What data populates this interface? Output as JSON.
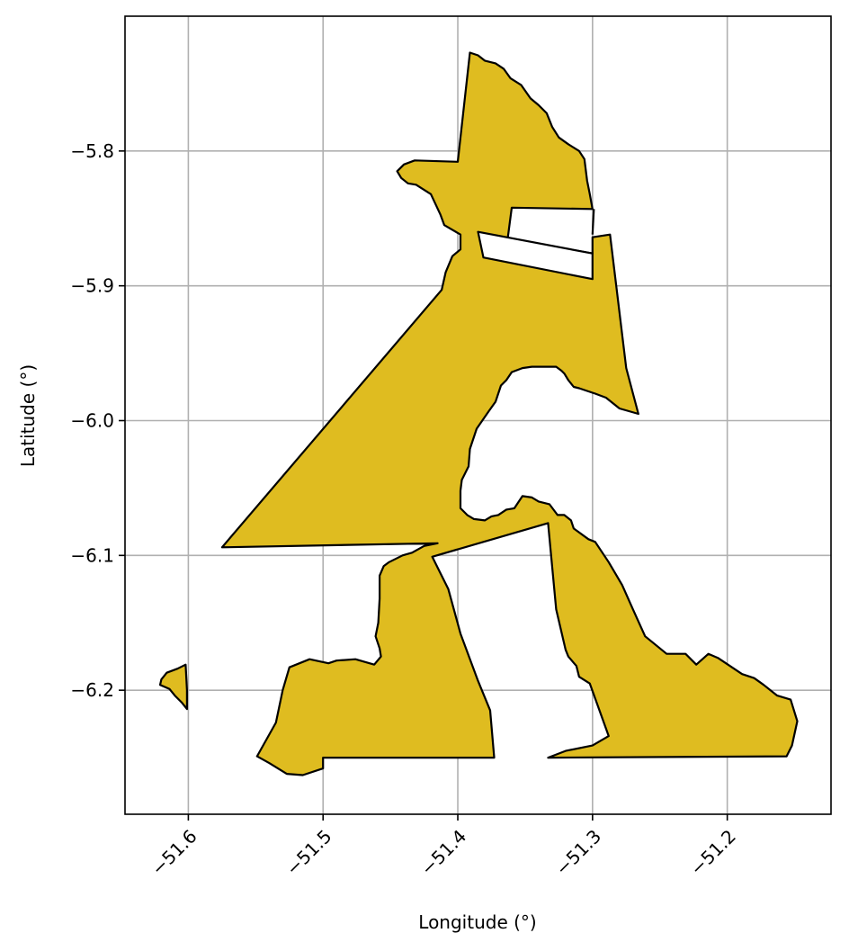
{
  "chart_data": {
    "type": "map",
    "xlabel": "Longitude (°)",
    "ylabel": "Latitude (°)",
    "xlim": [
      -51.647,
      -51.123
    ],
    "ylim": [
      -6.292,
      -5.7
    ],
    "x_ticks": [
      {
        "value": -51.6,
        "label": "−51.6"
      },
      {
        "value": -51.5,
        "label": "−51.5"
      },
      {
        "value": -51.4,
        "label": "−51.4"
      },
      {
        "value": -51.3,
        "label": "−51.3"
      },
      {
        "value": -51.2,
        "label": "−51.2"
      }
    ],
    "y_ticks": [
      {
        "value": -5.8,
        "label": "−5.8"
      },
      {
        "value": -5.9,
        "label": "−5.9"
      },
      {
        "value": -6.0,
        "label": "−6.0"
      },
      {
        "value": -6.1,
        "label": "−6.1"
      },
      {
        "value": -6.2,
        "label": "−6.2"
      }
    ],
    "grid": true,
    "fill_color": "#dfbc20",
    "edge_color": "#000000",
    "polygons": [
      {
        "name": "main-region",
        "outer": [
          [
            -51.391,
            -5.727
          ],
          [
            -51.385,
            -5.729
          ],
          [
            -51.38,
            -5.733
          ],
          [
            -51.372,
            -5.735
          ],
          [
            -51.366,
            -5.739
          ],
          [
            -51.361,
            -5.746
          ],
          [
            -51.353,
            -5.751
          ],
          [
            -51.346,
            -5.761
          ],
          [
            -51.34,
            -5.766
          ],
          [
            -51.334,
            -5.772
          ],
          [
            -51.33,
            -5.782
          ],
          [
            -51.325,
            -5.79
          ],
          [
            -51.318,
            -5.795
          ],
          [
            -51.31,
            -5.8
          ],
          [
            -51.306,
            -5.806
          ],
          [
            -51.304,
            -5.822
          ],
          [
            -51.302,
            -5.832
          ],
          [
            -51.3,
            -5.843
          ],
          [
            -51.36,
            -5.842
          ],
          [
            -51.363,
            -5.865
          ],
          [
            -51.3,
            -5.876
          ],
          [
            -51.3,
            -5.864
          ],
          [
            -51.287,
            -5.862
          ],
          [
            -51.275,
            -5.961
          ],
          [
            -51.266,
            -5.995
          ],
          [
            -51.28,
            -5.991
          ],
          [
            -51.29,
            -5.983
          ],
          [
            -51.298,
            -5.98
          ],
          [
            -51.304,
            -5.978
          ],
          [
            -51.31,
            -5.976
          ],
          [
            -51.314,
            -5.975
          ],
          [
            -51.318,
            -5.97
          ],
          [
            -51.321,
            -5.965
          ],
          [
            -51.323,
            -5.963
          ],
          [
            -51.327,
            -5.96
          ],
          [
            -51.335,
            -5.96
          ],
          [
            -51.345,
            -5.96
          ],
          [
            -51.352,
            -5.961
          ],
          [
            -51.36,
            -5.964
          ],
          [
            -51.364,
            -5.97
          ],
          [
            -51.368,
            -5.974
          ],
          [
            -51.372,
            -5.986
          ],
          [
            -51.377,
            -5.993
          ],
          [
            -51.386,
            -6.006
          ],
          [
            -51.391,
            -6.021
          ],
          [
            -51.392,
            -6.034
          ],
          [
            -51.397,
            -6.044
          ],
          [
            -51.398,
            -6.052
          ],
          [
            -51.398,
            -6.065
          ],
          [
            -51.393,
            -6.07
          ],
          [
            -51.388,
            -6.073
          ],
          [
            -51.38,
            -6.074
          ],
          [
            -51.375,
            -6.071
          ],
          [
            -51.37,
            -6.07
          ],
          [
            -51.364,
            -6.066
          ],
          [
            -51.358,
            -6.065
          ],
          [
            -51.352,
            -6.056
          ],
          [
            -51.345,
            -6.057
          ],
          [
            -51.34,
            -6.06
          ],
          [
            -51.332,
            -6.062
          ],
          [
            -51.326,
            -6.07
          ],
          [
            -51.321,
            -6.07
          ],
          [
            -51.316,
            -6.074
          ],
          [
            -51.314,
            -6.08
          ],
          [
            -51.303,
            -6.088
          ],
          [
            -51.298,
            -6.09
          ],
          [
            -51.288,
            -6.105
          ],
          [
            -51.278,
            -6.122
          ],
          [
            -51.27,
            -6.14
          ],
          [
            -51.261,
            -6.16
          ],
          [
            -51.245,
            -6.173
          ],
          [
            -51.231,
            -6.173
          ],
          [
            -51.223,
            -6.181
          ],
          [
            -51.214,
            -6.173
          ],
          [
            -51.207,
            -6.176
          ],
          [
            -51.189,
            -6.188
          ],
          [
            -51.18,
            -6.191
          ],
          [
            -51.173,
            -6.196
          ],
          [
            -51.163,
            -6.204
          ],
          [
            -51.153,
            -6.207
          ],
          [
            -51.148,
            -6.223
          ],
          [
            -51.152,
            -6.241
          ],
          [
            -51.156,
            -6.249
          ],
          [
            -51.333,
            -6.25
          ],
          [
            -51.32,
            -6.245
          ],
          [
            -51.3,
            -6.241
          ],
          [
            -51.288,
            -6.234
          ],
          [
            -51.302,
            -6.195
          ],
          [
            -51.31,
            -6.19
          ],
          [
            -51.312,
            -6.182
          ],
          [
            -51.318,
            -6.175
          ],
          [
            -51.32,
            -6.17
          ],
          [
            -51.327,
            -6.14
          ],
          [
            -51.333,
            -6.076
          ],
          [
            -51.419,
            -6.101
          ],
          [
            -51.407,
            -6.125
          ],
          [
            -51.398,
            -6.158
          ],
          [
            -51.385,
            -6.193
          ],
          [
            -51.376,
            -6.215
          ],
          [
            -51.373,
            -6.25
          ],
          [
            -51.5,
            -6.25
          ],
          [
            -51.5,
            -6.258
          ],
          [
            -51.515,
            -6.263
          ],
          [
            -51.527,
            -6.262
          ],
          [
            -51.54,
            -6.254
          ],
          [
            -51.549,
            -6.249
          ],
          [
            -51.535,
            -6.224
          ],
          [
            -51.53,
            -6.2
          ],
          [
            -51.525,
            -6.183
          ],
          [
            -51.51,
            -6.177
          ],
          [
            -51.496,
            -6.18
          ],
          [
            -51.49,
            -6.178
          ],
          [
            -51.476,
            -6.177
          ],
          [
            -51.462,
            -6.181
          ],
          [
            -51.457,
            -6.175
          ],
          [
            -51.458,
            -6.169
          ],
          [
            -51.461,
            -6.16
          ],
          [
            -51.459,
            -6.15
          ],
          [
            -51.458,
            -6.132
          ],
          [
            -51.458,
            -6.115
          ],
          [
            -51.455,
            -6.108
          ],
          [
            -51.451,
            -6.105
          ],
          [
            -51.441,
            -6.1
          ],
          [
            -51.434,
            -6.098
          ],
          [
            -51.425,
            -6.093
          ],
          [
            -51.415,
            -6.091
          ],
          [
            -51.575,
            -6.094
          ],
          [
            -51.412,
            -5.903
          ],
          [
            -51.409,
            -5.89
          ],
          [
            -51.404,
            -5.878
          ],
          [
            -51.398,
            -5.873
          ],
          [
            -51.398,
            -5.862
          ],
          [
            -51.41,
            -5.855
          ],
          [
            -51.413,
            -5.847
          ],
          [
            -51.42,
            -5.832
          ],
          [
            -51.431,
            -5.825
          ],
          [
            -51.437,
            -5.824
          ],
          [
            -51.442,
            -5.82
          ],
          [
            -51.445,
            -5.815
          ],
          [
            -51.44,
            -5.81
          ],
          [
            -51.432,
            -5.807
          ],
          [
            -51.4,
            -5.808
          ],
          [
            -51.391,
            -5.727
          ]
        ],
        "holes": [
          [
            [
              -51.385,
              -5.86
            ],
            [
              -51.3,
              -5.876
            ],
            [
              -51.3,
              -5.895
            ],
            [
              -51.381,
              -5.879
            ]
          ],
          [
            [
              -51.299,
              -5.843
            ],
            [
              -51.3,
              -5.862
            ]
          ]
        ]
      },
      {
        "name": "west-islet",
        "outer": [
          [
            -51.602,
            -6.181
          ],
          [
            -51.608,
            -6.184
          ],
          [
            -51.616,
            -6.187
          ],
          [
            -51.62,
            -6.192
          ],
          [
            -51.621,
            -6.196
          ],
          [
            -51.614,
            -6.199
          ],
          [
            -51.61,
            -6.204
          ],
          [
            -51.605,
            -6.209
          ],
          [
            -51.601,
            -6.214
          ],
          [
            -51.601,
            -6.2
          ],
          [
            -51.602,
            -6.181
          ]
        ],
        "holes": []
      }
    ]
  }
}
